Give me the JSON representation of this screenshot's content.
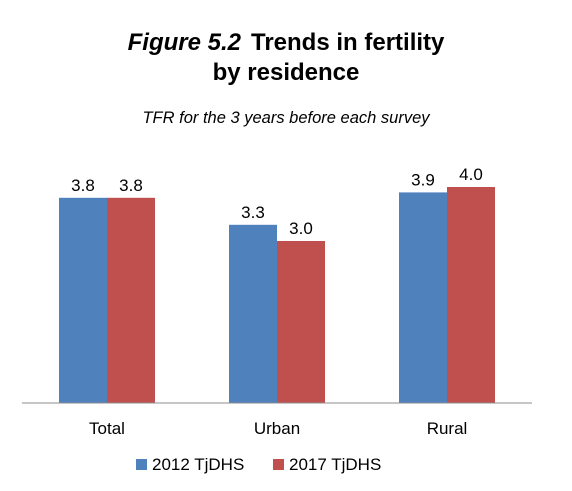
{
  "chart_data": {
    "type": "bar",
    "title_prefix": "Figure 5.2",
    "title_line1": "Trends in fertility",
    "title_line2": "by residence",
    "subtitle": "TFR for the 3 years before each survey",
    "xlabel": "",
    "ylabel": "",
    "categories": [
      "Total",
      "Urban",
      "Rural"
    ],
    "series": [
      {
        "name": "2012 TjDHS",
        "color": "#4f81bd",
        "values": [
          3.8,
          3.3,
          3.9
        ],
        "labels": [
          "3.8",
          "3.3",
          "3.9"
        ]
      },
      {
        "name": "2017 TjDHS",
        "color": "#c0504d",
        "values": [
          3.8,
          3.0,
          4.0
        ],
        "labels": [
          "3.8",
          "3.0",
          "4.0"
        ]
      }
    ],
    "ylim": [
      0,
      5.2
    ],
    "grid": false,
    "legend_position": "bottom"
  }
}
